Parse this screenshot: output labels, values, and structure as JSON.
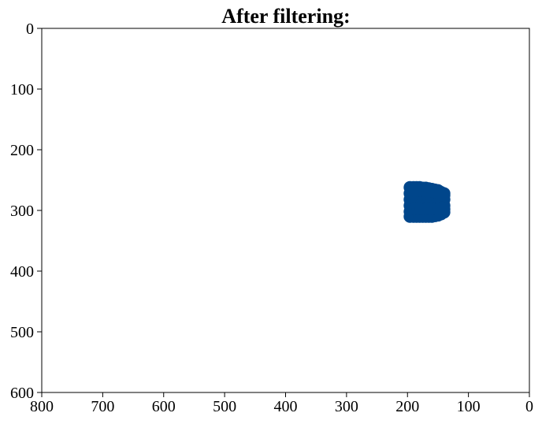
{
  "chart_data": {
    "type": "scatter",
    "title": "After filtering:",
    "xlabel": "",
    "ylabel": "",
    "xlim": [
      800,
      0
    ],
    "ylim": [
      600,
      0
    ],
    "x_inverted": true,
    "y_inverted": true,
    "grid": false,
    "legend": "none",
    "x_ticks": [
      800,
      700,
      600,
      500,
      400,
      300,
      200,
      100,
      0
    ],
    "y_ticks": [
      0,
      100,
      200,
      300,
      400,
      500,
      600
    ],
    "point_color": "#00468b",
    "series": [
      {
        "x": [
          196,
          190,
          185,
          180,
          175,
          170,
          165,
          160,
          155,
          150,
          145,
          140,
          196,
          190,
          185,
          180,
          175,
          170,
          165,
          160,
          155,
          150,
          145,
          140,
          196,
          190,
          185,
          180,
          175,
          170,
          165,
          160,
          155,
          150,
          145,
          140,
          196,
          190,
          185,
          180,
          175,
          170,
          165,
          160,
          155,
          150,
          145,
          140,
          196,
          190,
          185,
          180,
          175,
          170,
          165,
          160,
          155,
          150,
          145,
          140,
          196,
          190,
          185,
          180,
          175,
          170,
          165,
          160,
          155,
          150,
          145,
          140,
          193,
          188,
          183,
          178,
          173,
          168,
          163,
          158,
          153,
          148,
          143,
          193,
          188,
          183,
          178,
          173,
          168,
          163,
          158,
          153,
          148,
          143
        ],
        "y": [
          262,
          262,
          262,
          262,
          263,
          263,
          264,
          265,
          266,
          267,
          270,
          272,
          272,
          272,
          272,
          272,
          272,
          272,
          272,
          272,
          272,
          272,
          272,
          275,
          282,
          282,
          282,
          282,
          282,
          282,
          282,
          282,
          282,
          282,
          282,
          282,
          292,
          292,
          292,
          292,
          292,
          292,
          292,
          292,
          292,
          292,
          292,
          292,
          302,
          302,
          302,
          302,
          302,
          302,
          302,
          302,
          302,
          302,
          302,
          298,
          310,
          310,
          310,
          310,
          310,
          310,
          310,
          310,
          309,
          308,
          306,
          303,
          267,
          267,
          267,
          267,
          267,
          268,
          268,
          269,
          270,
          272,
          275,
          297,
          297,
          297,
          297,
          297,
          297,
          297,
          297,
          297,
          297,
          296
        ]
      }
    ]
  }
}
